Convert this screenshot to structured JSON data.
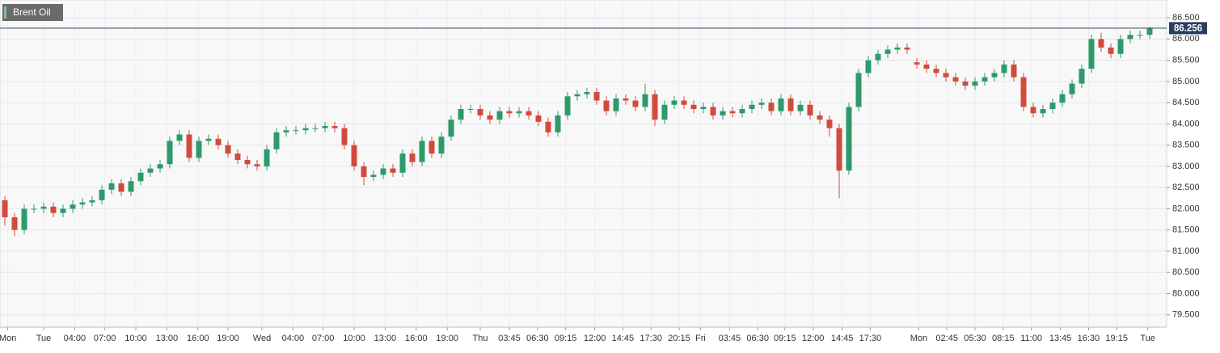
{
  "chart_data": {
    "type": "candlestick",
    "title": "Brent Oil",
    "up_color": "#2e9a6c",
    "down_color": "#d14b3d",
    "last_price_color": "#2c3e5f",
    "grid": true,
    "open": [
      82.2,
      81.8,
      81.5,
      82.0,
      82.0,
      82.05,
      81.9,
      82.0,
      82.1,
      82.15,
      82.2,
      82.45,
      82.6,
      82.4,
      82.65,
      82.85,
      82.95,
      83.05,
      83.6,
      83.75,
      83.2,
      83.6,
      83.65,
      83.5,
      83.3,
      83.15,
      83.05,
      83.0,
      83.4,
      83.8,
      83.85,
      83.85,
      83.9,
      83.9,
      83.95,
      83.9,
      83.5,
      83.0,
      82.75,
      82.8,
      82.95,
      82.85,
      83.3,
      83.1,
      83.6,
      83.3,
      83.7,
      84.1,
      84.35,
      84.35,
      84.2,
      84.1,
      84.3,
      84.25,
      84.3,
      84.2,
      84.05,
      83.8,
      84.2,
      84.65,
      84.7,
      84.75,
      84.55,
      84.3,
      84.6,
      84.55,
      84.4,
      84.7,
      84.1,
      84.45,
      84.55,
      84.45,
      84.35,
      84.4,
      84.2,
      84.3,
      84.25,
      84.35,
      84.45,
      84.5,
      84.3,
      84.6,
      84.3,
      84.45,
      84.2,
      84.1,
      83.9,
      82.9,
      84.4,
      85.2,
      85.5,
      85.65,
      85.75,
      85.8,
      85.45,
      85.4,
      85.3,
      85.2,
      85.1,
      85.0,
      84.9,
      85.0,
      85.1,
      85.2,
      85.4,
      85.1,
      84.4,
      84.25,
      84.35,
      84.5,
      84.7,
      84.95,
      85.3,
      86.0,
      85.8,
      85.65,
      86.0,
      86.1,
      86.1
    ],
    "high": [
      82.3,
      81.9,
      82.1,
      82.1,
      82.15,
      82.15,
      82.1,
      82.2,
      82.25,
      82.3,
      82.55,
      82.7,
      82.7,
      82.75,
      82.95,
      83.05,
      83.15,
      83.7,
      83.85,
      83.85,
      83.7,
      83.75,
      83.75,
      83.6,
      83.4,
      83.25,
      83.15,
      83.5,
      83.9,
      83.95,
      83.95,
      84.0,
      84.0,
      84.05,
      84.05,
      84.0,
      83.6,
      83.1,
      82.9,
      83.05,
      83.05,
      83.4,
      83.4,
      83.7,
      83.7,
      83.8,
      84.2,
      84.45,
      84.45,
      84.45,
      84.3,
      84.4,
      84.4,
      84.4,
      84.4,
      84.3,
      84.15,
      84.3,
      84.75,
      84.8,
      84.85,
      84.85,
      84.65,
      84.7,
      84.7,
      84.65,
      84.95,
      84.8,
      84.55,
      84.65,
      84.65,
      84.55,
      84.5,
      84.5,
      84.4,
      84.4,
      84.45,
      84.55,
      84.6,
      84.6,
      84.7,
      84.7,
      84.55,
      84.55,
      84.3,
      84.2,
      84.0,
      84.5,
      85.3,
      85.6,
      85.75,
      85.85,
      85.9,
      85.9,
      85.55,
      85.5,
      85.4,
      85.3,
      85.2,
      85.1,
      85.1,
      85.2,
      85.3,
      85.5,
      85.5,
      85.2,
      84.5,
      84.45,
      84.6,
      84.8,
      85.05,
      85.4,
      86.1,
      86.15,
      85.9,
      86.1,
      86.2,
      86.2,
      86.3
    ],
    "low": [
      81.6,
      81.35,
      81.4,
      81.9,
      81.9,
      81.8,
      81.8,
      81.9,
      82.0,
      82.05,
      82.1,
      82.35,
      82.3,
      82.3,
      82.55,
      82.75,
      82.85,
      82.95,
      83.5,
      83.1,
      83.1,
      83.5,
      83.4,
      83.2,
      83.05,
      82.95,
      82.9,
      82.9,
      83.3,
      83.7,
      83.75,
      83.75,
      83.8,
      83.8,
      83.8,
      83.4,
      82.9,
      82.55,
      82.65,
      82.7,
      82.75,
      82.75,
      83.0,
      83.0,
      83.2,
      83.2,
      83.6,
      84.0,
      84.25,
      84.1,
      84.0,
      84.0,
      84.15,
      84.15,
      84.1,
      83.95,
      83.7,
      83.7,
      84.1,
      84.55,
      84.6,
      84.45,
      84.2,
      84.2,
      84.45,
      84.3,
      84.3,
      83.95,
      84.0,
      84.35,
      84.35,
      84.25,
      84.25,
      84.1,
      84.1,
      84.15,
      84.15,
      84.25,
      84.35,
      84.2,
      84.2,
      84.2,
      84.2,
      84.1,
      84.0,
      83.7,
      82.25,
      82.8,
      84.3,
      85.1,
      85.4,
      85.55,
      85.65,
      85.65,
      85.3,
      85.2,
      85.1,
      85.0,
      84.9,
      84.8,
      84.8,
      84.9,
      85.0,
      85.1,
      85.0,
      84.3,
      84.15,
      84.15,
      84.25,
      84.4,
      84.6,
      84.85,
      85.2,
      85.7,
      85.55,
      85.55,
      85.9,
      86.0,
      86.0
    ],
    "close": [
      81.8,
      81.5,
      82.0,
      82.0,
      82.05,
      81.9,
      82.0,
      82.1,
      82.15,
      82.2,
      82.45,
      82.6,
      82.4,
      82.65,
      82.85,
      82.95,
      83.05,
      83.6,
      83.75,
      83.2,
      83.6,
      83.65,
      83.5,
      83.3,
      83.15,
      83.05,
      83.0,
      83.4,
      83.8,
      83.85,
      83.85,
      83.9,
      83.9,
      83.95,
      83.9,
      83.5,
      83.0,
      82.75,
      82.8,
      82.95,
      82.85,
      83.3,
      83.1,
      83.6,
      83.3,
      83.7,
      84.1,
      84.35,
      84.35,
      84.2,
      84.1,
      84.3,
      84.25,
      84.3,
      84.2,
      84.05,
      83.8,
      84.2,
      84.65,
      84.7,
      84.75,
      84.55,
      84.3,
      84.6,
      84.55,
      84.4,
      84.7,
      84.1,
      84.45,
      84.55,
      84.45,
      84.35,
      84.4,
      84.2,
      84.3,
      84.25,
      84.35,
      84.45,
      84.5,
      84.3,
      84.6,
      84.3,
      84.45,
      84.2,
      84.1,
      83.9,
      82.9,
      84.4,
      85.2,
      85.5,
      85.65,
      85.75,
      85.8,
      85.75,
      85.4,
      85.3,
      85.2,
      85.1,
      85.0,
      84.9,
      85.0,
      85.1,
      85.2,
      85.4,
      85.1,
      84.4,
      84.25,
      84.35,
      84.5,
      84.7,
      84.95,
      85.3,
      86.0,
      85.8,
      85.65,
      86.0,
      86.1,
      86.1,
      86.256
    ],
    "ylim": [
      79.21,
      86.92
    ],
    "yticks": [
      {
        "value": 79.5,
        "label": "79.500"
      },
      {
        "value": 80,
        "label": "80.000"
      },
      {
        "value": 80.5,
        "label": "80.500"
      },
      {
        "value": 81,
        "label": "81.000"
      },
      {
        "value": 81.5,
        "label": "81.500"
      },
      {
        "value": 82,
        "label": "82.000"
      },
      {
        "value": 82.5,
        "label": "82.500"
      },
      {
        "value": 83,
        "label": "83.000"
      },
      {
        "value": 83.5,
        "label": "83.500"
      },
      {
        "value": 84,
        "label": "84.000"
      },
      {
        "value": 84.5,
        "label": "84.500"
      },
      {
        "value": 85,
        "label": "85.000"
      },
      {
        "value": 85.5,
        "label": "85.500"
      },
      {
        "value": 86,
        "label": "86.000"
      },
      {
        "value": 86.5,
        "label": "86.500"
      }
    ],
    "xticks": [
      {
        "value": 0.3,
        "label": "Mon"
      },
      {
        "value": 4,
        "label": "Tue"
      },
      {
        "value": 7.2,
        "label": "04:00"
      },
      {
        "value": 10.3,
        "label": "07:00"
      },
      {
        "value": 13.5,
        "label": "10:00"
      },
      {
        "value": 16.7,
        "label": "13:00"
      },
      {
        "value": 19.9,
        "label": "16:00"
      },
      {
        "value": 23,
        "label": "19:00"
      },
      {
        "value": 26.5,
        "label": "Wed"
      },
      {
        "value": 29.7,
        "label": "04:00"
      },
      {
        "value": 32.8,
        "label": "07:00"
      },
      {
        "value": 36,
        "label": "10:00"
      },
      {
        "value": 39.2,
        "label": "13:00"
      },
      {
        "value": 42.4,
        "label": "16:00"
      },
      {
        "value": 45.6,
        "label": "19:00"
      },
      {
        "value": 49,
        "label": "Thu"
      },
      {
        "value": 52,
        "label": "03:45"
      },
      {
        "value": 54.9,
        "label": "06:30"
      },
      {
        "value": 57.8,
        "label": "09:15"
      },
      {
        "value": 60.8,
        "label": "12:00"
      },
      {
        "value": 63.7,
        "label": "14:45"
      },
      {
        "value": 66.6,
        "label": "17:30"
      },
      {
        "value": 69.5,
        "label": "20:15"
      },
      {
        "value": 71.7,
        "label": "Fri"
      },
      {
        "value": 74.7,
        "label": "03:45"
      },
      {
        "value": 77.6,
        "label": "06:30"
      },
      {
        "value": 80.4,
        "label": "09:15"
      },
      {
        "value": 83.3,
        "label": "12:00"
      },
      {
        "value": 86.3,
        "label": "14:45"
      },
      {
        "value": 89.2,
        "label": "17:30"
      },
      {
        "value": 94.2,
        "label": "Mon"
      },
      {
        "value": 97.1,
        "label": "02:45"
      },
      {
        "value": 100,
        "label": "05:30"
      },
      {
        "value": 102.9,
        "label": "08:15"
      },
      {
        "value": 105.8,
        "label": "11:00"
      },
      {
        "value": 108.8,
        "label": "13:45"
      },
      {
        "value": 111.7,
        "label": "16:30"
      },
      {
        "value": 114.6,
        "label": "19:15"
      },
      {
        "value": 117.8,
        "label": "Tue"
      }
    ]
  }
}
